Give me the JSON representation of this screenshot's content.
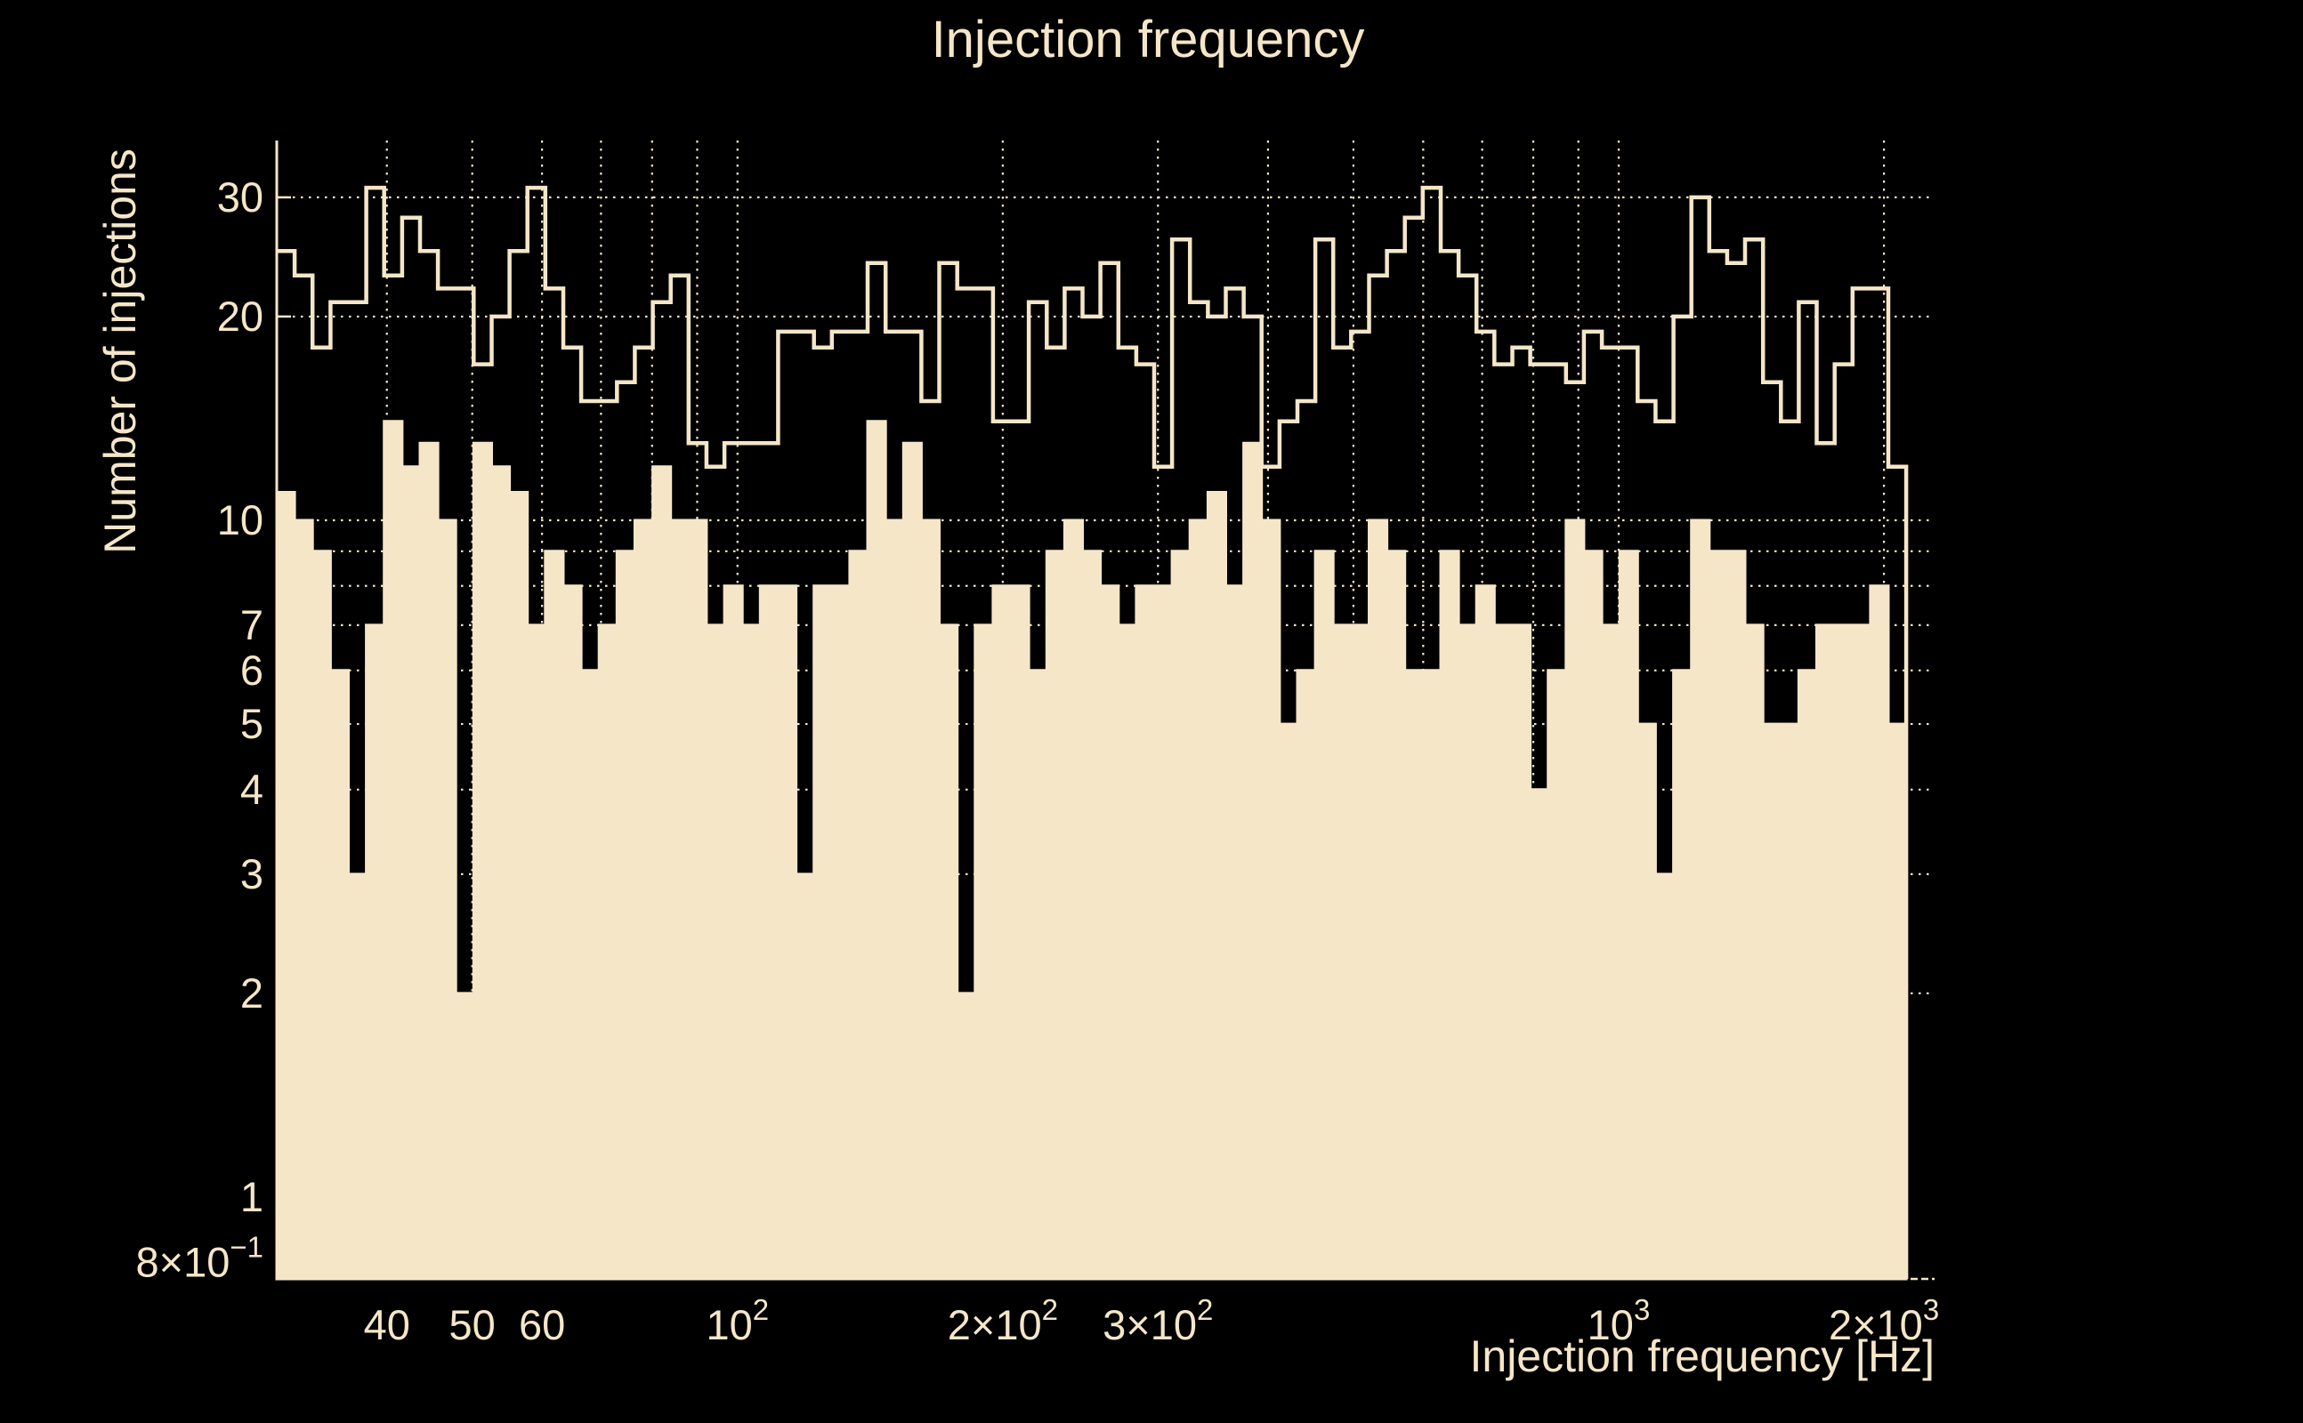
{
  "page": {
    "background": "#000000"
  },
  "chart_data": {
    "type": "bar",
    "subtype": "step-histogram-log-log",
    "title": "Injection frequency",
    "xlabel": "Injection frequency [Hz]",
    "ylabel": "Number of injections",
    "colors": {
      "foreground": "#F5E6C8",
      "background": "#000000"
    },
    "x_axis": {
      "scale": "log",
      "min": 30,
      "max": 2283,
      "unit": "Hz"
    },
    "y_axis": {
      "scale": "log",
      "min": 0.757,
      "max": 36.4
    },
    "bins": {
      "n": 91,
      "first_edge_hz": 30,
      "last_edge_hz": 2120,
      "spacing": "log-uniform"
    },
    "x_gridlines": [
      40,
      50,
      60,
      70,
      80,
      90,
      100,
      200,
      300,
      400,
      500,
      600,
      700,
      800,
      900,
      1000,
      2000
    ],
    "y_gridlines": [
      2,
      3,
      4,
      5,
      6,
      7,
      8,
      9,
      10,
      20,
      30
    ],
    "x_ticks": [
      {
        "value": 40,
        "main": "40",
        "sup": ""
      },
      {
        "value": 50,
        "main": "50",
        "sup": ""
      },
      {
        "value": 60,
        "main": "60",
        "sup": ""
      },
      {
        "value": 100,
        "main": "10",
        "sup": "2"
      },
      {
        "value": 200,
        "main": "2×10",
        "sup": "2"
      },
      {
        "value": 300,
        "main": "3×10",
        "sup": "2"
      },
      {
        "value": 1000,
        "main": "10",
        "sup": "3"
      },
      {
        "value": 2000,
        "main": "2×10",
        "sup": "3"
      }
    ],
    "y_ticks": [
      {
        "value": 30,
        "main": "30",
        "sup": ""
      },
      {
        "value": 20,
        "main": "20",
        "sup": ""
      },
      {
        "value": 10,
        "main": "10",
        "sup": ""
      },
      {
        "value": 7,
        "main": "7",
        "sup": ""
      },
      {
        "value": 6,
        "main": "6",
        "sup": ""
      },
      {
        "value": 5,
        "main": "5",
        "sup": ""
      },
      {
        "value": 4,
        "main": "4",
        "sup": ""
      },
      {
        "value": 3,
        "main": "3",
        "sup": ""
      },
      {
        "value": 2,
        "main": "2",
        "sup": ""
      },
      {
        "value": 1,
        "main": "1",
        "sup": ""
      },
      {
        "value": 0.8,
        "main": "8×10",
        "sup": "−1"
      }
    ],
    "series": [
      {
        "name": "outline-histogram",
        "style": "hollow-step",
        "values": [
          25,
          23,
          18,
          21,
          21,
          31,
          23,
          28,
          25,
          22,
          22,
          17,
          20,
          25,
          31,
          22,
          18,
          15,
          15,
          16,
          18,
          21,
          23,
          13,
          12,
          13,
          13,
          13,
          19,
          19,
          18,
          19,
          19,
          24,
          19,
          19,
          15,
          24,
          22,
          22,
          14,
          14,
          21,
          18,
          22,
          20,
          24,
          18,
          17,
          12,
          26,
          21,
          20,
          22,
          20,
          12,
          14,
          15,
          26,
          18,
          19,
          23,
          25,
          28,
          31,
          25,
          23,
          19,
          17,
          18,
          17,
          17,
          16,
          19,
          18,
          18,
          15,
          14,
          20,
          30,
          25,
          24,
          26,
          16,
          14,
          21,
          13,
          17,
          22,
          22,
          12
        ]
      },
      {
        "name": "filled-histogram",
        "style": "filled",
        "values": [
          11,
          10,
          9,
          6,
          3,
          7,
          14,
          12,
          13,
          10,
          2,
          13,
          12,
          11,
          7,
          9,
          8,
          6,
          7,
          9,
          10,
          12,
          10,
          10,
          7,
          8,
          7,
          8,
          8,
          3,
          8,
          8,
          9,
          14,
          10,
          13,
          10,
          7,
          2,
          7,
          8,
          8,
          6,
          9,
          10,
          9,
          8,
          7,
          8,
          8,
          9,
          10,
          11,
          8,
          13,
          10,
          5,
          6,
          9,
          7,
          7,
          10,
          9,
          6,
          6,
          9,
          7,
          8,
          7,
          7,
          4,
          6,
          10,
          9,
          7,
          9,
          5,
          3,
          6,
          10,
          9,
          9,
          7,
          5,
          5,
          6,
          7,
          7,
          7,
          8,
          5
        ]
      }
    ]
  }
}
